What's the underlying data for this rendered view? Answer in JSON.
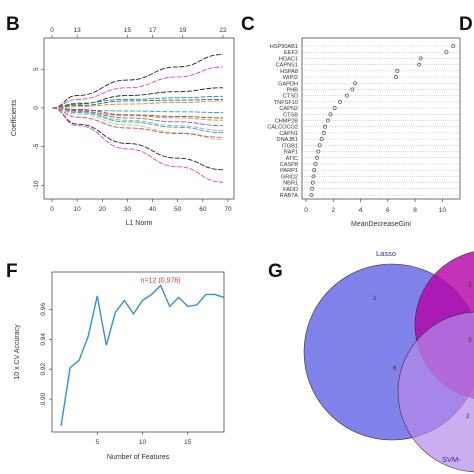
{
  "panels": {
    "B": {
      "letter": "B",
      "xlabel": "L1 Norm",
      "ylabel": "Coefficients",
      "xticks": [
        0,
        10,
        20,
        30,
        40,
        50,
        60,
        70
      ],
      "yticks": [
        -10,
        -5,
        0,
        5
      ],
      "top_ticks": [
        0,
        13,
        15,
        17,
        19,
        22
      ],
      "top_ticks_at": [
        0,
        10,
        30,
        40,
        52,
        68
      ]
    },
    "C": {
      "letter": "C",
      "xlabel": "MeanDecreaseGini",
      "xticks": [
        0,
        2,
        4,
        6,
        8,
        10
      ]
    },
    "D": {
      "letter": "D"
    },
    "F": {
      "letter": "F",
      "xlabel": "Number of Features",
      "ylabel": "10 x CV Accuracy",
      "xticks": [
        5,
        10,
        15
      ],
      "yticks": [
        0.9,
        0.92,
        0.94,
        0.96
      ],
      "annotation": "n=12 (0.976)"
    },
    "G": {
      "letter": "G",
      "set_lasso": "Lasso",
      "set_svm": "SVM-",
      "regions": {
        "lasso_only": "1",
        "lasso_svm": "6",
        "rf_part": "3",
        "rf_svm": "3",
        "svm_part": "2"
      }
    }
  },
  "chart_data": [
    {
      "type": "line",
      "panel": "B",
      "title": "",
      "xlabel": "L1 Norm",
      "ylabel": "Coefficients",
      "xlim": [
        0,
        70
      ],
      "ylim": [
        -11,
        8
      ],
      "grid": false,
      "series": [
        {
          "color": "#222222",
          "values": [
            [
              0,
              0
            ],
            [
              10,
              1.6
            ],
            [
              30,
              3.6
            ],
            [
              50,
              5.3
            ],
            [
              68,
              6.9
            ]
          ]
        },
        {
          "color": "#d048c0",
          "values": [
            [
              0,
              0
            ],
            [
              10,
              1.1
            ],
            [
              30,
              2.6
            ],
            [
              50,
              4.0
            ],
            [
              68,
              5.3
            ]
          ]
        },
        {
          "color": "#222222",
          "values": [
            [
              0,
              0
            ],
            [
              10,
              0.5
            ],
            [
              30,
              1.6
            ],
            [
              50,
              2.1
            ],
            [
              68,
              2.6
            ]
          ]
        },
        {
          "color": "#2a8f4a",
          "values": [
            [
              0,
              0
            ],
            [
              10,
              0.6
            ],
            [
              30,
              1.1
            ],
            [
              50,
              1.3
            ],
            [
              68,
              1.5
            ]
          ]
        },
        {
          "color": "#2060c8",
          "values": [
            [
              0,
              0
            ],
            [
              10,
              0.3
            ],
            [
              30,
              0.9
            ],
            [
              50,
              1.0
            ],
            [
              68,
              1.1
            ]
          ]
        },
        {
          "color": "#e08a20",
          "values": [
            [
              0,
              0
            ],
            [
              10,
              0.2
            ],
            [
              30,
              0.5
            ],
            [
              50,
              0.7
            ],
            [
              68,
              0.9
            ]
          ]
        },
        {
          "color": "#20a8c0",
          "values": [
            [
              0,
              0
            ],
            [
              10,
              -0.3
            ],
            [
              30,
              -0.4
            ],
            [
              50,
              -0.5
            ],
            [
              68,
              -0.6
            ]
          ]
        },
        {
          "color": "#c03030",
          "values": [
            [
              0,
              0
            ],
            [
              10,
              -0.2
            ],
            [
              30,
              -0.9
            ],
            [
              50,
              -1.1
            ],
            [
              68,
              -1.3
            ]
          ]
        },
        {
          "color": "#7fbf3f",
          "values": [
            [
              0,
              0
            ],
            [
              10,
              -0.5
            ],
            [
              30,
              -1.0
            ],
            [
              50,
              -1.3
            ],
            [
              68,
              -1.6
            ]
          ]
        },
        {
          "color": "#a050d0",
          "values": [
            [
              0,
              0
            ],
            [
              10,
              -0.4
            ],
            [
              30,
              -1.3
            ],
            [
              50,
              -1.8
            ],
            [
              68,
              -2.3
            ]
          ]
        },
        {
          "color": "#20a8c0",
          "values": [
            [
              0,
              0
            ],
            [
              10,
              -0.6
            ],
            [
              30,
              -1.8
            ],
            [
              50,
              -2.5
            ],
            [
              68,
              -3.2
            ]
          ]
        },
        {
          "color": "#9ad86a",
          "values": [
            [
              0,
              0
            ],
            [
              10,
              -0.8
            ],
            [
              30,
              -2.2
            ],
            [
              50,
              -3.2
            ],
            [
              68,
              -4.1
            ]
          ]
        },
        {
          "color": "#aaaaaa",
          "values": [
            [
              0,
              0
            ],
            [
              10,
              -0.5
            ],
            [
              30,
              -1.6
            ],
            [
              50,
              -2.3
            ],
            [
              68,
              -2.9
            ]
          ]
        },
        {
          "color": "#e04070",
          "values": [
            [
              0,
              0
            ],
            [
              10,
              -1.2
            ],
            [
              30,
              -2.6
            ],
            [
              50,
              -3.3
            ],
            [
              68,
              -3.8
            ]
          ]
        },
        {
          "color": "#222222",
          "values": [
            [
              0,
              0
            ],
            [
              10,
              -2.1
            ],
            [
              30,
              -4.6
            ],
            [
              50,
              -6.5
            ],
            [
              68,
              -8.0
            ]
          ]
        },
        {
          "color": "#d048c0",
          "values": [
            [
              0,
              0
            ],
            [
              10,
              -2.3
            ],
            [
              30,
              -5.3
            ],
            [
              50,
              -7.6
            ],
            [
              68,
              -9.6
            ]
          ]
        }
      ]
    },
    {
      "type": "scatter",
      "panel": "C",
      "title": "",
      "xlabel": "MeanDecreaseGini",
      "xlim": [
        0,
        11
      ],
      "grid": true,
      "categories": [
        "HSP90AB1",
        "EEF2",
        "HDAC1",
        "CAPNS1",
        "HSPA8",
        "WIPI2",
        "GAPDH",
        "PHB",
        "CTSD",
        "TNFSF10",
        "CAPN2",
        "CTSB",
        "CHMP2B",
        "CALCOCO2",
        "CAPN1",
        "DNAJB1",
        "ITGB1",
        "RAF1",
        "ATIC",
        "CASP8",
        "PARP1",
        "GRID2",
        "NBR1",
        "FADD",
        "RAB7A"
      ],
      "values": [
        10.8,
        10.3,
        8.4,
        8.3,
        6.7,
        6.6,
        3.6,
        3.4,
        3.0,
        2.5,
        2.1,
        1.8,
        1.6,
        1.4,
        1.3,
        1.15,
        1.0,
        0.9,
        0.8,
        0.7,
        0.6,
        0.55,
        0.5,
        0.45,
        0.4
      ]
    },
    {
      "type": "line",
      "panel": "F",
      "title": "",
      "xlabel": "Number of Features",
      "ylabel": "10 x CV Accuracy",
      "xlim": [
        0,
        19
      ],
      "ylim": [
        0.878,
        0.985
      ],
      "grid": false,
      "x": [
        1,
        2,
        3,
        4,
        5,
        6,
        7,
        8,
        9,
        10,
        11,
        12,
        13,
        14,
        15,
        16,
        17,
        18,
        19
      ],
      "series": [
        {
          "values": [
            0.882,
            0.921,
            0.926,
            0.942,
            0.969,
            0.936,
            0.958,
            0.966,
            0.957,
            0.966,
            0.97,
            0.976,
            0.962,
            0.968,
            0.962,
            0.963,
            0.97,
            0.97,
            0.968
          ]
        }
      ],
      "annotation": {
        "x": 12,
        "y": 0.976,
        "text": "n=12 (0.976)"
      }
    }
  ]
}
